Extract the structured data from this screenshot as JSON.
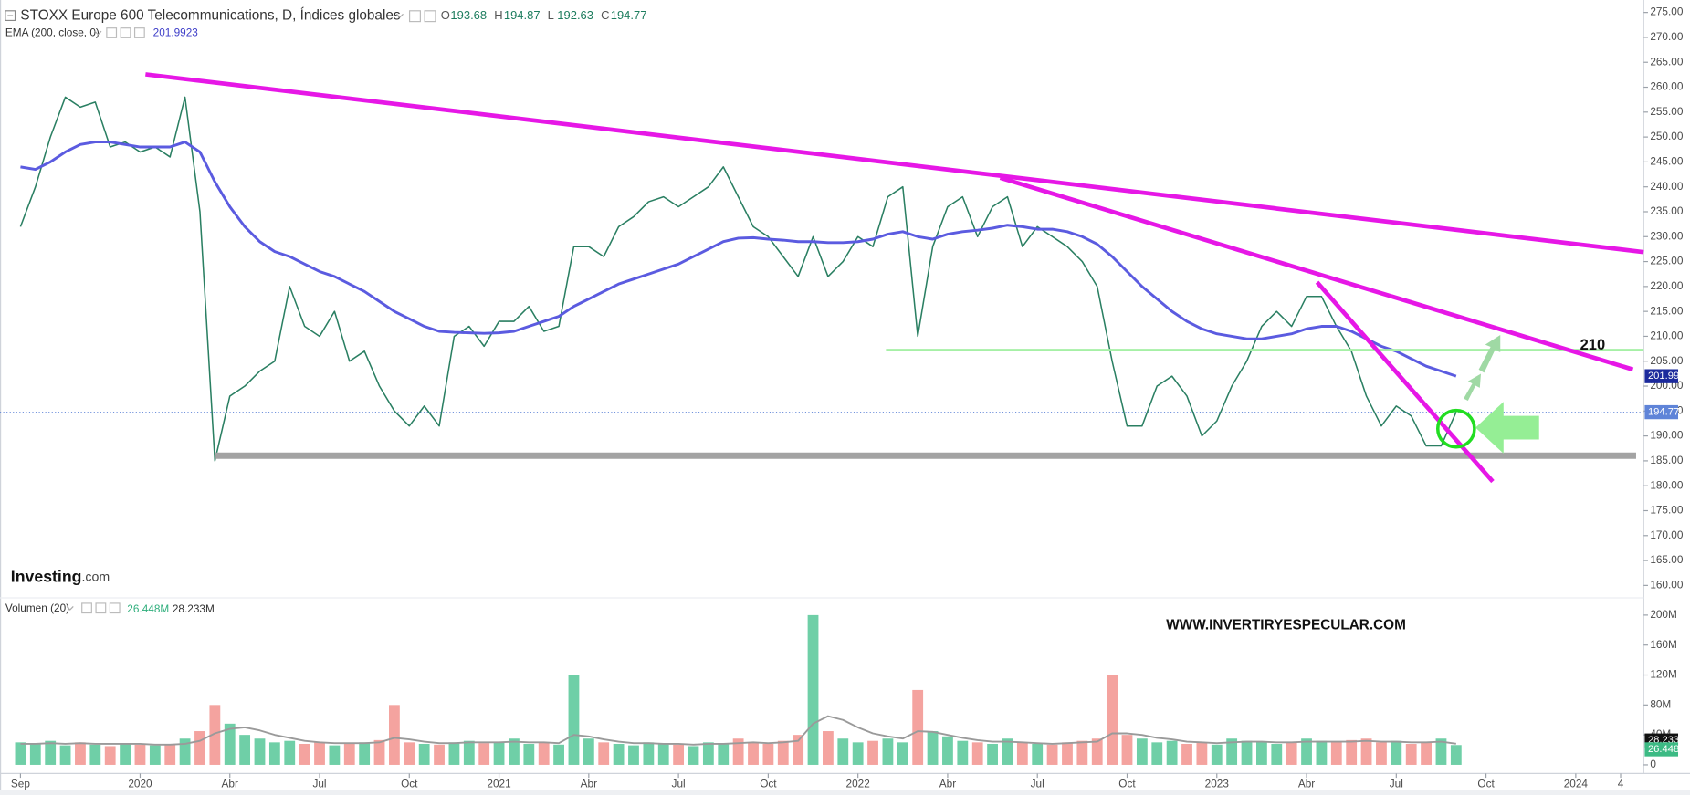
{
  "header": {
    "title": "STOXX Europe 600 Telecommunications, D, Índices globales",
    "ohlc": [
      {
        "key": "O",
        "value": "193.68"
      },
      {
        "key": "H",
        "value": "194.87"
      },
      {
        "key": "L",
        "value": "192.63"
      },
      {
        "key": "C",
        "value": "194.77"
      }
    ],
    "ema_value": "201.9923",
    "volume_label": "Volumen (20)",
    "volume_values": [
      "26.448M",
      "28.233M"
    ]
  },
  "chart_data": [
    {
      "type": "line",
      "categories": [
        "Sep",
        null,
        null,
        null,
        null,
        null,
        null,
        null,
        "2020",
        null,
        null,
        null,
        null,
        null,
        "Abr",
        null,
        null,
        null,
        null,
        null,
        "Jul",
        null,
        null,
        null,
        null,
        null,
        "Oct",
        null,
        null,
        null,
        null,
        null,
        "2021",
        null,
        null,
        null,
        null,
        null,
        "Abr",
        null,
        null,
        null,
        null,
        null,
        "Jul",
        null,
        null,
        null,
        null,
        null,
        "Oct",
        null,
        null,
        null,
        null,
        null,
        "2022",
        null,
        null,
        null,
        null,
        null,
        "Abr",
        null,
        null,
        null,
        null,
        null,
        "Jul",
        null,
        null,
        null,
        null,
        null,
        "Oct",
        null,
        null,
        null,
        null,
        null,
        "2023",
        null,
        null,
        null,
        null,
        null,
        "Abr",
        null,
        null,
        null,
        null,
        null,
        "Jul",
        null,
        null,
        null,
        null,
        null,
        "Oct",
        null,
        null,
        null,
        null,
        null,
        "2024",
        null,
        null,
        "4"
      ],
      "series": [
        {
          "color": "#2a7f62",
          "values": [
            232,
            240,
            250,
            258,
            256,
            257,
            248,
            249,
            247,
            248,
            246,
            258,
            235,
            185,
            198,
            200,
            203,
            205,
            220,
            212,
            210,
            215,
            205,
            207,
            200,
            195,
            192,
            196,
            192,
            210,
            212,
            208,
            213,
            213,
            216,
            211,
            212,
            228,
            228,
            226,
            232,
            234,
            237,
            238,
            236,
            238,
            240,
            244,
            238,
            232,
            230,
            226,
            222,
            230,
            222,
            225,
            230,
            228,
            238,
            240,
            210,
            228,
            236,
            238,
            230,
            236,
            238,
            228,
            232,
            230,
            228,
            225,
            220,
            205,
            192,
            192,
            200,
            202,
            198,
            190,
            193,
            200,
            205,
            212,
            215,
            212,
            218,
            218,
            212,
            207,
            198,
            192,
            196,
            194,
            188,
            188,
            194.77,
            null,
            null,
            null,
            null,
            null,
            null,
            null,
            null,
            null,
            null,
            null
          ]
        },
        {
          "name": "EMA (200, close, 0)",
          "color": "#5b5be0",
          "values": [
            244,
            243.5,
            245,
            247,
            248.5,
            249,
            249,
            248.5,
            248,
            248,
            248,
            249,
            247,
            241,
            236,
            232,
            229,
            227,
            226,
            224.5,
            223,
            222,
            220.5,
            219,
            217,
            215,
            213.5,
            212,
            211,
            210.8,
            210.7,
            210.6,
            210.7,
            211,
            212,
            213,
            214,
            216,
            217.5,
            219,
            220.5,
            221.5,
            222.5,
            223.5,
            224.5,
            226,
            227.5,
            229,
            229.7,
            229.8,
            229.5,
            229.3,
            229,
            229,
            228.8,
            228.8,
            229,
            229.5,
            230.5,
            231,
            230,
            229.5,
            230.5,
            231,
            231.3,
            231.7,
            232.3,
            232,
            231.5,
            231.5,
            231,
            230,
            228.5,
            226,
            223,
            220,
            217.5,
            215,
            213,
            211.5,
            210.5,
            210,
            209.5,
            209.5,
            210,
            210.5,
            211.5,
            212,
            212,
            211,
            209.5,
            208,
            207,
            205.5,
            204,
            203,
            201.9923,
            null,
            null,
            null,
            null,
            null,
            null,
            null,
            null,
            null,
            null,
            null
          ]
        }
      ],
      "ylim": [
        157.5,
        277.5
      ],
      "yticks": [
        {
          "value": 275,
          "label": "275.00"
        },
        {
          "value": 270,
          "label": "270.00"
        },
        {
          "value": 265,
          "label": "265.00"
        },
        {
          "value": 260,
          "label": "260.00"
        },
        {
          "value": 255,
          "label": "255.00"
        },
        {
          "value": 250,
          "label": "250.00"
        },
        {
          "value": 245,
          "label": "245.00"
        },
        {
          "value": 240,
          "label": "240.00"
        },
        {
          "value": 235,
          "label": "235.00"
        },
        {
          "value": 230,
          "label": "230.00"
        },
        {
          "value": 225,
          "label": "225.00"
        },
        {
          "value": 220,
          "label": "220.00"
        },
        {
          "value": 215,
          "label": "215.00"
        },
        {
          "value": 210,
          "label": "210.00"
        },
        {
          "value": 205,
          "label": "205.00"
        },
        {
          "value": 200,
          "label": "200.00"
        },
        {
          "value": 195,
          "label": "195.00"
        },
        {
          "value": 190,
          "label": "190.00"
        },
        {
          "value": 185,
          "label": "185.00"
        },
        {
          "value": 180,
          "label": "180.00"
        },
        {
          "value": 175,
          "label": "175.00"
        },
        {
          "value": 170,
          "label": "170.00"
        },
        {
          "value": 165,
          "label": "165.00"
        },
        {
          "value": 160,
          "label": "160.00"
        }
      ],
      "last_labels": [
        {
          "text": "201.99",
          "color": "#1c2a9c"
        },
        {
          "text": "194.77",
          "color": "#5f84d8"
        }
      ],
      "grid": false
    },
    {
      "type": "bar",
      "up_color": "#6fcfa7",
      "down_color": "#f4a39f",
      "values": [
        30,
        28,
        32,
        26,
        30,
        27,
        25,
        29,
        27,
        26,
        28,
        35,
        45,
        80,
        55,
        40,
        35,
        30,
        32,
        28,
        30,
        26,
        28,
        30,
        33,
        80,
        30,
        28,
        27,
        30,
        32,
        29,
        30,
        35,
        28,
        30,
        27,
        120,
        35,
        30,
        28,
        26,
        30,
        28,
        27,
        25,
        30,
        28,
        35,
        30,
        28,
        32,
        40,
        200,
        45,
        35,
        30,
        32,
        35,
        30,
        100,
        45,
        38,
        32,
        30,
        28,
        35,
        30,
        28,
        27,
        30,
        32,
        35,
        120,
        40,
        35,
        30,
        32,
        28,
        30,
        27,
        35,
        32,
        30,
        28,
        30,
        35,
        32,
        30,
        33,
        35,
        30,
        32,
        28,
        30,
        35,
        26.448,
        null,
        null,
        null,
        null,
        null,
        null,
        null,
        null,
        null,
        null,
        null
      ],
      "ma": {
        "color": "#9a9a9a",
        "values": [
          28,
          28,
          29,
          28,
          29,
          28,
          28,
          28,
          28,
          27,
          27,
          28,
          32,
          42,
          48,
          50,
          46,
          40,
          36,
          32,
          30,
          29,
          29,
          29,
          30,
          36,
          34,
          31,
          29,
          29,
          30,
          30,
          30,
          31,
          30,
          30,
          29,
          40,
          38,
          34,
          31,
          29,
          29,
          28,
          28,
          27,
          28,
          28,
          29,
          30,
          29,
          30,
          32,
          55,
          65,
          60,
          50,
          42,
          38,
          35,
          45,
          44,
          40,
          36,
          33,
          31,
          31,
          30,
          29,
          28,
          29,
          30,
          31,
          42,
          42,
          40,
          36,
          34,
          31,
          30,
          29,
          30,
          31,
          31,
          30,
          30,
          31,
          31,
          31,
          31,
          32,
          31,
          31,
          30,
          30,
          31,
          28.233,
          null,
          null,
          null,
          null,
          null,
          null,
          null,
          null,
          null,
          null,
          null
        ]
      },
      "ylim": [
        0,
        223
      ],
      "yticks": [
        {
          "value": 200,
          "label": "200M"
        },
        {
          "value": 160,
          "label": "160M"
        },
        {
          "value": 120,
          "label": "120M"
        },
        {
          "value": 80,
          "label": "80M"
        },
        {
          "value": 40,
          "label": "40M"
        },
        0
      ],
      "last_labels": [
        {
          "text": "28.233M",
          "color": "#111111"
        },
        {
          "text": "26.448M",
          "color": "#3cba84"
        }
      ]
    }
  ],
  "annotations": {
    "level_label": "210",
    "website": "WWW.INVERTIRYESPECULAR.COM",
    "logo_bold": "Investing",
    "logo_suffix": ".com"
  }
}
